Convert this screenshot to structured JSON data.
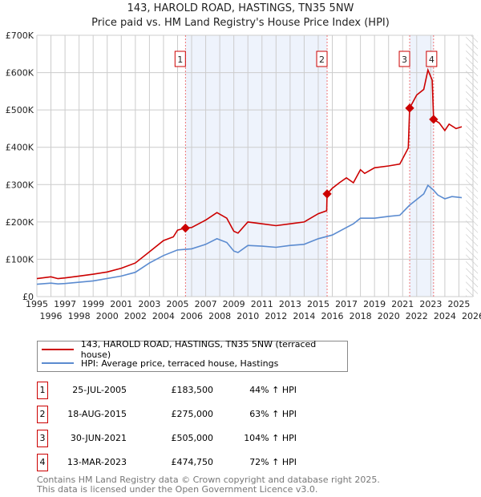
{
  "chart_data": {
    "type": "line",
    "title": "143, HAROLD ROAD, HASTINGS, TN35 5NW",
    "subtitle": "Price paid vs. HM Land Registry's House Price Index (HPI)",
    "xlim": [
      1995,
      2026
    ],
    "ylim": [
      0,
      700000
    ],
    "yticks": [
      {
        "v": 0,
        "label": "£0"
      },
      {
        "v": 100000,
        "label": "£100K"
      },
      {
        "v": 200000,
        "label": "£200K"
      },
      {
        "v": 300000,
        "label": "£300K"
      },
      {
        "v": 400000,
        "label": "£400K"
      },
      {
        "v": 500000,
        "label": "£500K"
      },
      {
        "v": 600000,
        "label": "£600K"
      },
      {
        "v": 700000,
        "label": "£700K"
      }
    ],
    "xticks": [
      "1995",
      "1996",
      "1997",
      "1998",
      "1999",
      "2000",
      "2001",
      "2002",
      "2003",
      "2004",
      "2005",
      "2006",
      "2007",
      "2008",
      "2009",
      "2010",
      "2011",
      "2012",
      "2013",
      "2014",
      "2015",
      "2016",
      "2017",
      "2018",
      "2019",
      "2020",
      "2021",
      "2022",
      "2023",
      "2024",
      "2025",
      "2026"
    ],
    "grid": true,
    "shaded_periods": [
      [
        2005.56,
        2015.63
      ],
      [
        2021.5,
        2023.2
      ]
    ],
    "forecast_hatch_from": 2025.5,
    "series": [
      {
        "name": "143, HAROLD ROAD, HASTINGS, TN35 5NW (terraced house)",
        "color": "#cc0000",
        "x": [
          1995,
          1996,
          1996.5,
          1997,
          1998,
          1999,
          2000,
          2001,
          2002,
          2003,
          2004,
          2004.7,
          2005,
          2005.56,
          2006,
          2006.5,
          2007,
          2007.8,
          2008.5,
          2009,
          2009.3,
          2010,
          2011,
          2012,
          2013,
          2014,
          2015,
          2015.6,
          2015.63,
          2016,
          2016.5,
          2017,
          2017.5,
          2018,
          2018.3,
          2019,
          2020,
          2020.8,
          2021.4,
          2021.5,
          2022,
          2022.5,
          2022.8,
          2023.1,
          2023.2,
          2023.6,
          2024,
          2024.3,
          2024.8,
          2025.2
        ],
        "y": [
          48000,
          53000,
          48000,
          50000,
          55000,
          60000,
          66000,
          76000,
          90000,
          120000,
          150000,
          160000,
          178000,
          183500,
          185000,
          195000,
          205000,
          225000,
          210000,
          175000,
          170000,
          200000,
          195000,
          190000,
          195000,
          200000,
          222000,
          230000,
          275000,
          290000,
          305000,
          318000,
          305000,
          340000,
          330000,
          345000,
          350000,
          355000,
          398000,
          505000,
          540000,
          555000,
          607000,
          580000,
          474750,
          465000,
          445000,
          462000,
          450000,
          455000
        ]
      },
      {
        "name": "HPI: Average price, terraced house, Hastings",
        "color": "#5b8bd0",
        "x": [
          1995,
          1996,
          1996.5,
          1997,
          1999,
          2001,
          2002,
          2003,
          2004,
          2005,
          2006,
          2007,
          2007.8,
          2008.5,
          2009,
          2009.3,
          2010,
          2011,
          2012,
          2013,
          2014,
          2015,
          2016,
          2017,
          2017.5,
          2018,
          2019,
          2020,
          2020.8,
          2021.5,
          2022.5,
          2022.8,
          2023.2,
          2023.5,
          2024,
          2024.5,
          2025.2
        ],
        "y": [
          33000,
          36000,
          34000,
          35000,
          42000,
          55000,
          65000,
          90000,
          110000,
          125000,
          128000,
          140000,
          155000,
          145000,
          122000,
          118000,
          137000,
          135000,
          132000,
          137000,
          140000,
          155000,
          165000,
          185000,
          195000,
          210000,
          210000,
          215000,
          218000,
          245000,
          275000,
          298000,
          285000,
          272000,
          262000,
          268000,
          265000
        ]
      }
    ],
    "sales": [
      {
        "id": "1",
        "x": 2005.56,
        "y": 183500
      },
      {
        "id": "2",
        "x": 2015.63,
        "y": 275000
      },
      {
        "id": "3",
        "x": 2021.5,
        "y": 505000
      },
      {
        "id": "4",
        "x": 2023.2,
        "y": 474750
      }
    ]
  },
  "legend": [
    {
      "label": "143, HAROLD ROAD, HASTINGS, TN35 5NW (terraced house)",
      "color": "#cc0000"
    },
    {
      "label": "HPI: Average price, terraced house, Hastings",
      "color": "#5b8bd0"
    }
  ],
  "table": [
    {
      "num": "1",
      "date": "25-JUL-2005",
      "price": "£183,500",
      "hpi": "44% ↑ HPI"
    },
    {
      "num": "2",
      "date": "18-AUG-2015",
      "price": "£275,000",
      "hpi": "63% ↑ HPI"
    },
    {
      "num": "3",
      "date": "30-JUN-2021",
      "price": "£505,000",
      "hpi": "104% ↑ HPI"
    },
    {
      "num": "4",
      "date": "13-MAR-2023",
      "price": "£474,750",
      "hpi": "72% ↑ HPI"
    }
  ],
  "footer": {
    "line1": "Contains HM Land Registry data © Crown copyright and database right 2025.",
    "line2": "This data is licensed under the Open Government Licence v3.0."
  }
}
